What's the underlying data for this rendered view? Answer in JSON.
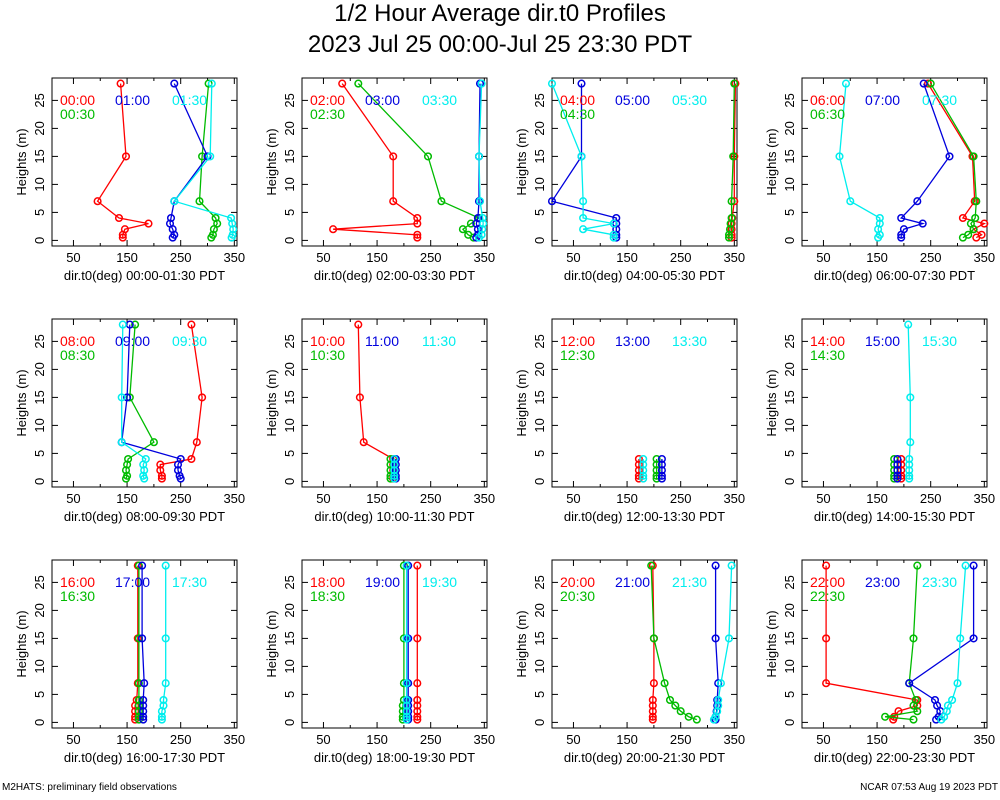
{
  "title": "1/2 Hour Average dir.t0 Profiles",
  "subtitle": "2023 Jul 25 00:00-Jul 25 23:30 PDT",
  "footer_left": "M2HATS: preliminary field observations",
  "footer_right": "NCAR 07:53 Aug 19 2023 PDT",
  "colors": {
    "red": "#ff0000",
    "blue": "#0000dd",
    "cyan": "#00eeee",
    "green": "#00bb00"
  },
  "chart_data": {
    "type": "line",
    "heights": [
      0.5,
      1,
      2,
      3,
      4,
      7,
      15,
      28
    ],
    "xlim": [
      10,
      355
    ],
    "ylim": [
      -1,
      29
    ],
    "xticks": [
      50,
      150,
      250,
      350
    ],
    "minor_xticks": [
      100,
      200,
      300
    ],
    "yticks": [
      0,
      5,
      10,
      15,
      20,
      25
    ],
    "ylabel": "Heights (m)",
    "panels": [
      {
        "xlabel": "dir.t0(deg) 00:00-01:30 PDT",
        "series": [
          {
            "name": "00:00",
            "color": "red",
            "x": [
              142,
              142,
              146,
              190,
              135,
              95,
              148,
              138
            ]
          },
          {
            "name": "00:30",
            "color": "green",
            "x": [
              307,
              310,
              312,
              318,
              315,
              285,
              290,
              302
            ]
          },
          {
            "name": "01:00",
            "color": "blue",
            "x": [
              235,
              238,
              235,
              230,
              232,
              238,
              300,
              238
            ]
          },
          {
            "name": "01:30",
            "color": "cyan",
            "x": [
              345,
              347,
              348,
              346,
              344,
              238,
              305,
              308
            ]
          }
        ]
      },
      {
        "xlabel": "dir.t0(deg) 02:00-03:30 PDT",
        "series": [
          {
            "name": "02:00",
            "color": "red",
            "x": [
              225,
              225,
              68,
              225,
              225,
              180,
              180,
              85
            ]
          },
          {
            "name": "02:30",
            "color": "green",
            "x": [
              330,
              320,
              310,
              325,
              340,
              270,
              245,
              115
            ]
          },
          {
            "name": "03:00",
            "color": "blue",
            "x": [
              335,
              338,
              338,
              335,
              338,
              340,
              340,
              342
            ]
          },
          {
            "name": "03:30",
            "color": "cyan",
            "x": [
              340,
              345,
              346,
              348,
              347,
              342,
              340,
              345
            ]
          }
        ]
      },
      {
        "xlabel": "dir.t0(deg) 04:00-05:30 PDT",
        "series": [
          {
            "name": "04:00",
            "color": "red",
            "x": [
              345,
              345,
              345,
              345,
              346,
              350,
              350,
              352
            ]
          },
          {
            "name": "04:30",
            "color": "green",
            "x": [
              340,
              340,
              342,
              343,
              345,
              345,
              348,
              350
            ]
          },
          {
            "name": "05:00",
            "color": "blue",
            "x": [
              130,
              130,
              130,
              130,
              130,
              10,
              65,
              65
            ]
          },
          {
            "name": "05:30",
            "color": "cyan",
            "x": [
              125,
              125,
              68,
              125,
              68,
              68,
              65,
              10
            ]
          }
        ]
      },
      {
        "xlabel": "dir.t0(deg) 06:00-07:30 PDT",
        "series": [
          {
            "name": "06:00",
            "color": "red",
            "x": [
              335,
              345,
              330,
              350,
              310,
              332,
              328,
              245
            ]
          },
          {
            "name": "06:30",
            "color": "green",
            "x": [
              310,
              320,
              330,
              325,
              333,
              335,
              330,
              250
            ]
          },
          {
            "name": "07:00",
            "color": "blue",
            "x": [
              195,
              195,
              200,
              235,
              195,
              225,
              285,
              237
            ]
          },
          {
            "name": "07:30",
            "color": "cyan",
            "x": [
              152,
              155,
              152,
              155,
              155,
              100,
              80,
              92
            ]
          }
        ]
      },
      {
        "xlabel": "dir.t0(deg) 08:00-09:30 PDT",
        "series": [
          {
            "name": "08:00",
            "color": "red",
            "x": [
              215,
              215,
              212,
              212,
              270,
              280,
              290,
              270
            ]
          },
          {
            "name": "08:30",
            "color": "green",
            "x": [
              148,
              150,
              148,
              150,
              152,
              200,
              155,
              165
            ]
          },
          {
            "name": "09:00",
            "color": "blue",
            "x": [
              250,
              248,
              245,
              245,
              250,
              140,
              150,
              155
            ]
          },
          {
            "name": "09:30",
            "color": "cyan",
            "x": [
              182,
              180,
              182,
              180,
              185,
              140,
              140,
              142
            ]
          }
        ]
      },
      {
        "xlabel": "dir.t0(deg) 10:00-11:30 PDT",
        "series": [
          {
            "name": "10:00",
            "color": "red",
            "x": [
              180,
              180,
              180,
              180,
              180,
              125,
              118,
              115
            ]
          },
          {
            "name": "10:30",
            "color": "green",
            "x": [
              175,
              175,
              175,
              175,
              175
            ]
          },
          {
            "name": "11:00",
            "color": "blue",
            "x": [
              185,
              185,
              185,
              185,
              185
            ]
          },
          {
            "name": "11:30",
            "color": "cyan",
            "x": [
              182,
              182,
              182,
              182,
              182
            ]
          }
        ]
      },
      {
        "xlabel": "dir.t0(deg) 12:00-13:30 PDT",
        "series": [
          {
            "name": "12:00",
            "color": "red",
            "x": [
              172,
              172,
              172,
              172,
              172
            ]
          },
          {
            "name": "12:30",
            "color": "green",
            "x": [
              205,
              205,
              205,
              205,
              205
            ]
          },
          {
            "name": "13:00",
            "color": "blue",
            "x": [
              215,
              215,
              215,
              215,
              215
            ]
          },
          {
            "name": "13:30",
            "color": "cyan",
            "x": [
              180,
              180,
              180,
              180,
              180
            ]
          }
        ]
      },
      {
        "xlabel": "dir.t0(deg) 14:00-15:30 PDT",
        "series": [
          {
            "name": "14:00",
            "color": "red",
            "x": [
              195,
              195,
              195,
              195,
              195
            ]
          },
          {
            "name": "14:30",
            "color": "green",
            "x": [
              182,
              182,
              182,
              182,
              182
            ]
          },
          {
            "name": "15:00",
            "color": "blue",
            "x": [
              188,
              188,
              188,
              188,
              188
            ]
          },
          {
            "name": "15:30",
            "color": "cyan",
            "x": [
              210,
              210,
              210,
              210,
              210,
              212,
              212,
              208
            ]
          }
        ]
      },
      {
        "xlabel": "dir.t0(deg) 16:00-17:30 PDT",
        "series": [
          {
            "name": "16:00",
            "color": "red",
            "x": [
              165,
              165,
              165,
              165,
              168,
              170,
              170,
              170
            ]
          },
          {
            "name": "16:30",
            "color": "green",
            "x": [
              172,
              172,
              172,
              172,
              172,
              172,
              172,
              172
            ]
          },
          {
            "name": "17:00",
            "color": "blue",
            "x": [
              180,
              180,
              180,
              180,
              180,
              182,
              178,
              178
            ]
          },
          {
            "name": "17:30",
            "color": "cyan",
            "x": [
              215,
              215,
              215,
              218,
              218,
              222,
              222,
              222
            ]
          }
        ]
      },
      {
        "xlabel": "dir.t0(deg) 18:00-19:30 PDT",
        "series": [
          {
            "name": "18:00",
            "color": "red",
            "x": [
              225,
              225,
              225,
              225,
              225,
              225,
              225,
              225
            ]
          },
          {
            "name": "18:30",
            "color": "green",
            "x": [
              198,
              198,
              198,
              198,
              200,
              200,
              200,
              200
            ]
          },
          {
            "name": "19:00",
            "color": "blue",
            "x": [
              208,
              208,
              208,
              208,
              208,
              208,
              208,
              208
            ]
          },
          {
            "name": "19:30",
            "color": "cyan",
            "x": [
              205,
              205,
              205,
              205,
              205,
              205,
              205,
              205
            ]
          }
        ]
      },
      {
        "xlabel": "dir.t0(deg) 20:00-21:30 PDT",
        "series": [
          {
            "name": "20:00",
            "color": "red",
            "x": [
              198,
              198,
              198,
              198,
              198,
              200,
              200,
              198
            ]
          },
          {
            "name": "20:30",
            "color": "green",
            "x": [
              280,
              265,
              250,
              240,
              230,
              220,
              200,
              195
            ]
          },
          {
            "name": "21:00",
            "color": "blue",
            "x": [
              315,
              315,
              317,
              318,
              318,
              320,
              315,
              315
            ]
          },
          {
            "name": "21:30",
            "color": "cyan",
            "x": [
              312,
              315,
              318,
              320,
              320,
              325,
              340,
              345
            ]
          }
        ]
      },
      {
        "xlabel": "dir.t0(deg) 22:00-23:30 PDT",
        "series": [
          {
            "name": "22:00",
            "color": "red",
            "x": [
              180,
              182,
              190,
              225,
              225,
              55,
              55,
              55
            ]
          },
          {
            "name": "22:30",
            "color": "green",
            "x": [
              218,
              165,
              225,
              218,
              222,
              210,
              218,
              225
            ]
          },
          {
            "name": "23:00",
            "color": "blue",
            "x": [
              260,
              265,
              268,
              262,
              258,
              210,
              330,
              330
            ]
          },
          {
            "name": "23:30",
            "color": "cyan",
            "x": [
              270,
              275,
              280,
              282,
              290,
              300,
              305,
              315
            ]
          }
        ]
      }
    ]
  }
}
